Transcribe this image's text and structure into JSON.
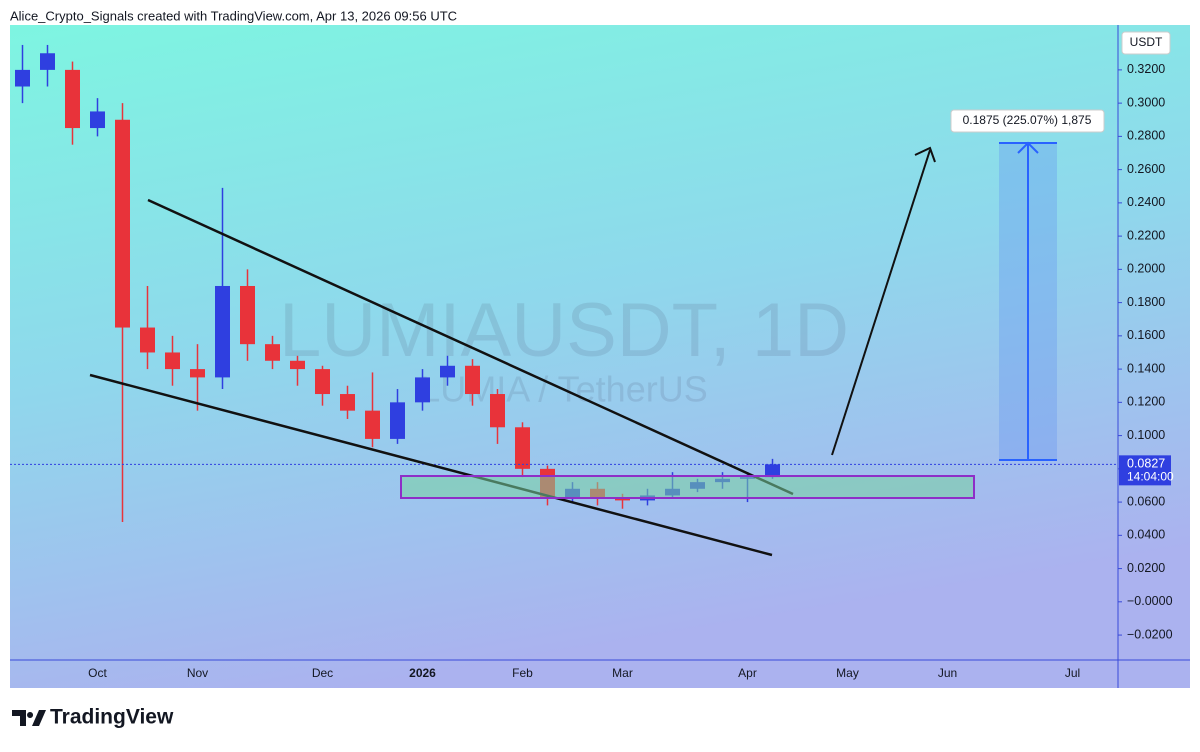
{
  "header": "Alice_Crypto_Signals created with TradingView.com, Apr 13, 2026 09:56 UTC",
  "footer": {
    "brand": "TradingView"
  },
  "chart_data": {
    "type": "candlestick",
    "title": "LUMIAUSDT, 1D",
    "subtitle": "LUMIA / TetherUS",
    "currency": "USDT",
    "categories": [
      null,
      null,
      null,
      "Oct",
      null,
      null,
      null,
      "Nov",
      null,
      null,
      null,
      null,
      "Dec",
      null,
      null,
      null,
      "2026",
      null,
      null,
      null,
      "Feb",
      null,
      null,
      null,
      "Mar",
      null,
      null,
      null,
      null,
      "Apr",
      null,
      null,
      null,
      "May",
      null,
      null,
      null,
      "Jun",
      null,
      null,
      null,
      null,
      "Jul",
      null
    ],
    "open": [
      0.31,
      0.32,
      0.32,
      0.285,
      0.29,
      0.165,
      0.15,
      0.14,
      0.135,
      0.19,
      0.155,
      0.145,
      0.14,
      0.125,
      0.115,
      0.098,
      0.12,
      0.135,
      0.142,
      0.125,
      0.105,
      0.08,
      0.063,
      0.068,
      0.062,
      0.061,
      0.064,
      0.068,
      0.072,
      0.074,
      0.075,
      null,
      null,
      null,
      null,
      null,
      null,
      null,
      null,
      null,
      null,
      null,
      null,
      null
    ],
    "high": [
      0.335,
      0.335,
      0.325,
      0.303,
      0.3,
      0.19,
      0.16,
      0.155,
      0.249,
      0.2,
      0.16,
      0.148,
      0.142,
      0.13,
      0.138,
      0.128,
      0.14,
      0.148,
      0.146,
      0.128,
      0.108,
      0.082,
      0.072,
      0.072,
      0.065,
      0.068,
      0.078,
      0.074,
      0.078,
      0.078,
      0.086,
      null,
      null,
      null,
      null,
      null,
      null,
      null,
      null,
      null,
      null,
      null,
      null,
      null
    ],
    "low": [
      0.3,
      0.31,
      0.275,
      0.28,
      0.048,
      0.14,
      0.13,
      0.115,
      0.128,
      0.145,
      0.14,
      0.13,
      0.118,
      0.11,
      0.093,
      0.095,
      0.115,
      0.13,
      0.118,
      0.095,
      0.075,
      0.058,
      0.06,
      0.058,
      0.056,
      0.058,
      0.062,
      0.066,
      0.068,
      0.06,
      0.074,
      null,
      null,
      null,
      null,
      null,
      null,
      null,
      null,
      null,
      null,
      null,
      null,
      null
    ],
    "close": [
      0.32,
      0.33,
      0.285,
      0.295,
      0.165,
      0.15,
      0.14,
      0.135,
      0.19,
      0.155,
      0.145,
      0.14,
      0.125,
      0.115,
      0.098,
      0.12,
      0.135,
      0.142,
      0.125,
      0.105,
      0.08,
      0.063,
      0.068,
      0.062,
      0.061,
      0.064,
      0.068,
      0.072,
      0.074,
      0.075,
      0.0827,
      null,
      null,
      null,
      null,
      null,
      null,
      null,
      null,
      null,
      null,
      null,
      null,
      null
    ],
    "up_color": "#2f3fe0",
    "down_color": "#e8333a",
    "last_price": 0.0827,
    "countdown": "14:04:00",
    "measure_label": "0.1875 (225.07%) 1,875",
    "ylim": [
      -0.035,
      0.347
    ],
    "yticks": [
      {
        "value": -0.02,
        "label": "−0.0200"
      },
      {
        "value": 0,
        "label": "−0.0000"
      },
      {
        "value": 0.02,
        "label": "0.0200"
      },
      {
        "value": 0.04,
        "label": "0.0400"
      },
      {
        "value": 0.06,
        "label": "0.0600"
      },
      {
        "value": 0.08,
        "label": "0.0800"
      },
      {
        "value": 0.1,
        "label": "0.1000"
      },
      {
        "value": 0.12,
        "label": "0.1200"
      },
      {
        "value": 0.14,
        "label": "0.1400"
      },
      {
        "value": 0.16,
        "label": "0.1600"
      },
      {
        "value": 0.18,
        "label": "0.1800"
      },
      {
        "value": 0.2,
        "label": "0.2000"
      },
      {
        "value": 0.22,
        "label": "0.2200"
      },
      {
        "value": 0.24,
        "label": "0.2400"
      },
      {
        "value": 0.26,
        "label": "0.2600"
      },
      {
        "value": 0.28,
        "label": "0.2800"
      },
      {
        "value": 0.3,
        "label": "0.3000"
      },
      {
        "value": 0.32,
        "label": "0.3200"
      }
    ],
    "grid": false
  }
}
